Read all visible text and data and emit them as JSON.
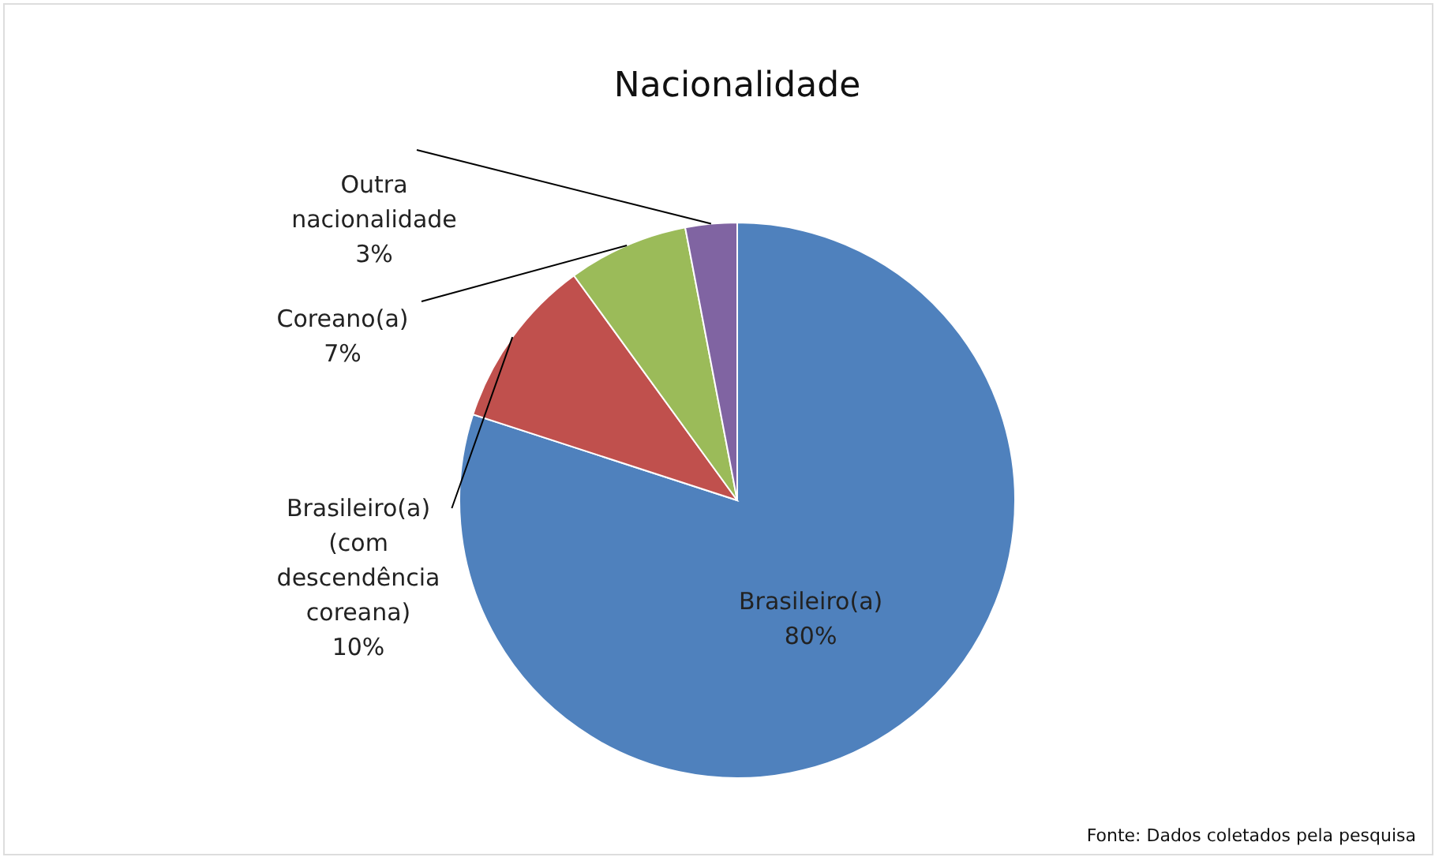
{
  "chart_data": {
    "type": "pie",
    "title": "Nacionalidade",
    "categories": [
      "Brasileiro(a)",
      "Brasileiro(a) (com descendência coreana)",
      "Coreano(a)",
      "Outra nacionalidade"
    ],
    "values": [
      80,
      10,
      7,
      3
    ],
    "value_labels": [
      "80%",
      "10%",
      "7%",
      "3%"
    ],
    "colors": [
      "#4f81bd",
      "#c0504d",
      "#9bbb59",
      "#8064a2"
    ],
    "annotations": [
      "Fonte: Dados coletados pela pesquisa"
    ]
  }
}
